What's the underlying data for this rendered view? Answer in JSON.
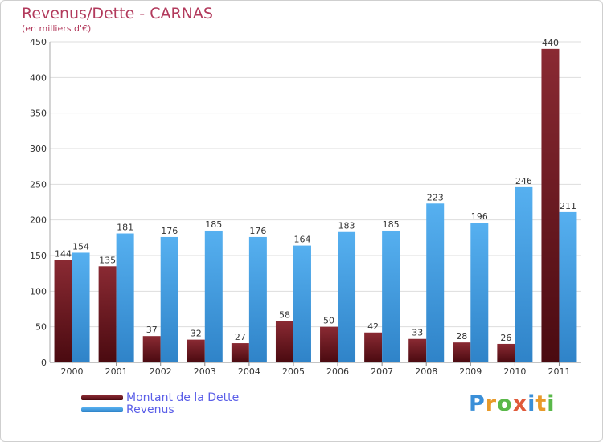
{
  "header": {
    "title": "Revenus/Dette - CARNAS",
    "subtitle": "(en milliers d'€)"
  },
  "colors": {
    "debt": "#7a1a22",
    "debt_dark": "#4a0c12",
    "revenue": "#4aa3e6",
    "revenue_dark": "#2a7fc4",
    "title": "#b23a5c",
    "legend_text": "#5a5ee8",
    "grid": "#dddddd",
    "axis_text": "#333333"
  },
  "chart_data": {
    "type": "bar",
    "title": "Revenus/Dette - CARNAS",
    "subtitle": "(en milliers d'€)",
    "categories": [
      "2000",
      "2001",
      "2002",
      "2003",
      "2004",
      "2005",
      "2006",
      "2007",
      "2008",
      "2009",
      "2010",
      "2011"
    ],
    "series": [
      {
        "name": "Montant de la Dette",
        "values": [
          144,
          135,
          37,
          32,
          27,
          58,
          50,
          42,
          33,
          28,
          26,
          440
        ]
      },
      {
        "name": "Revenus",
        "values": [
          154,
          181,
          176,
          185,
          176,
          164,
          183,
          185,
          223,
          196,
          246,
          211
        ]
      }
    ],
    "ylim": [
      0,
      450
    ],
    "yticks": [
      0,
      50,
      100,
      150,
      200,
      250,
      300,
      350,
      400,
      450
    ],
    "grid": true,
    "legend_position": "bottom-left"
  },
  "legend": {
    "items": [
      {
        "label": "Montant de la Dette"
      },
      {
        "label": "Revenus"
      }
    ]
  },
  "logo": {
    "letters": [
      "P",
      "r",
      "o",
      "x",
      "i",
      "t",
      "i"
    ],
    "colors": [
      "#3a8fd8",
      "#e89a2a",
      "#5ab84a",
      "#e05a3a",
      "#3a8fd8",
      "#e89a2a",
      "#5ab84a"
    ]
  }
}
